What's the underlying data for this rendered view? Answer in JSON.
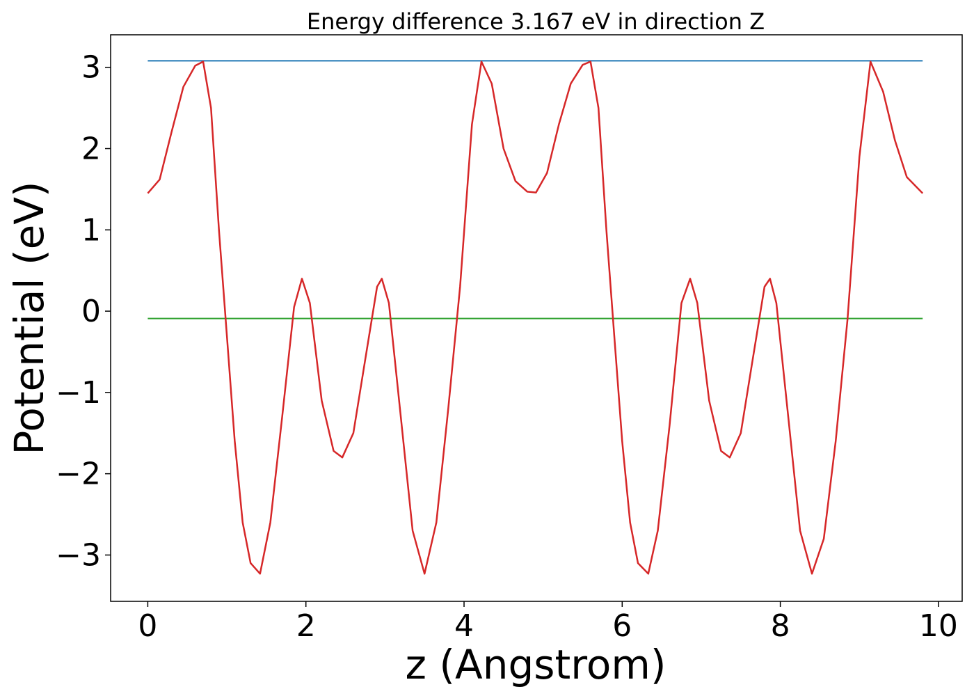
{
  "chart_data": {
    "type": "line",
    "title": "Energy difference 3.167 eV in direction Z",
    "xlabel": "z (Angstrom)",
    "ylabel": "Potential (eV)",
    "xlim": [
      -0.47,
      10.3
    ],
    "ylim": [
      -3.57,
      3.4
    ],
    "xticks": [
      0,
      2,
      4,
      6,
      8,
      10
    ],
    "xtick_labels": [
      "0",
      "2",
      "4",
      "6",
      "8",
      "10"
    ],
    "yticks": [
      -3,
      -2,
      -1,
      0,
      1,
      2,
      3
    ],
    "ytick_labels": [
      "−3",
      "−2",
      "−1",
      "0",
      "1",
      "2",
      "3"
    ],
    "grid": false,
    "series": [
      {
        "color": "#1f77b4",
        "x": [
          0,
          9.8
        ],
        "y": [
          3.08,
          3.08
        ]
      },
      {
        "color": "#2ca02c",
        "x": [
          0,
          9.8
        ],
        "y": [
          -0.09,
          -0.09
        ]
      },
      {
        "color": "#d62728",
        "x": [
          0.0,
          0.15,
          0.3,
          0.45,
          0.6,
          0.7,
          0.8,
          0.9,
          1.0,
          1.1,
          1.2,
          1.3,
          1.42,
          1.55,
          1.7,
          1.85,
          1.95,
          2.05,
          2.2,
          2.35,
          2.46,
          2.6,
          2.75,
          2.9,
          2.96,
          3.05,
          3.2,
          3.35,
          3.5,
          3.65,
          3.8,
          3.95,
          4.1,
          4.22,
          4.35,
          4.5,
          4.65,
          4.8,
          4.91,
          5.05,
          5.2,
          5.35,
          5.5,
          5.6,
          5.7,
          5.8,
          5.9,
          6.0,
          6.1,
          6.2,
          6.33,
          6.45,
          6.6,
          6.75,
          6.86,
          6.95,
          7.1,
          7.25,
          7.36,
          7.5,
          7.65,
          7.8,
          7.87,
          7.95,
          8.1,
          8.25,
          8.4,
          8.55,
          8.7,
          8.85,
          9.0,
          9.14,
          9.3,
          9.45,
          9.6,
          9.8
        ],
        "y": [
          1.45,
          1.62,
          2.2,
          2.76,
          3.02,
          3.07,
          2.5,
          1.0,
          -0.3,
          -1.6,
          -2.6,
          -3.1,
          -3.23,
          -2.6,
          -1.3,
          0.05,
          0.4,
          0.1,
          -1.1,
          -1.72,
          -1.8,
          -1.5,
          -0.6,
          0.3,
          0.4,
          0.1,
          -1.3,
          -2.7,
          -3.23,
          -2.6,
          -1.2,
          0.3,
          2.3,
          3.07,
          2.8,
          2.0,
          1.6,
          1.47,
          1.46,
          1.7,
          2.3,
          2.8,
          3.03,
          3.07,
          2.5,
          1.0,
          -0.3,
          -1.6,
          -2.6,
          -3.1,
          -3.23,
          -2.7,
          -1.4,
          0.1,
          0.4,
          0.1,
          -1.1,
          -1.72,
          -1.8,
          -1.5,
          -0.6,
          0.3,
          0.4,
          0.1,
          -1.3,
          -2.7,
          -3.23,
          -2.8,
          -1.6,
          -0.1,
          1.9,
          3.07,
          2.7,
          2.1,
          1.65,
          1.45
        ]
      }
    ]
  }
}
